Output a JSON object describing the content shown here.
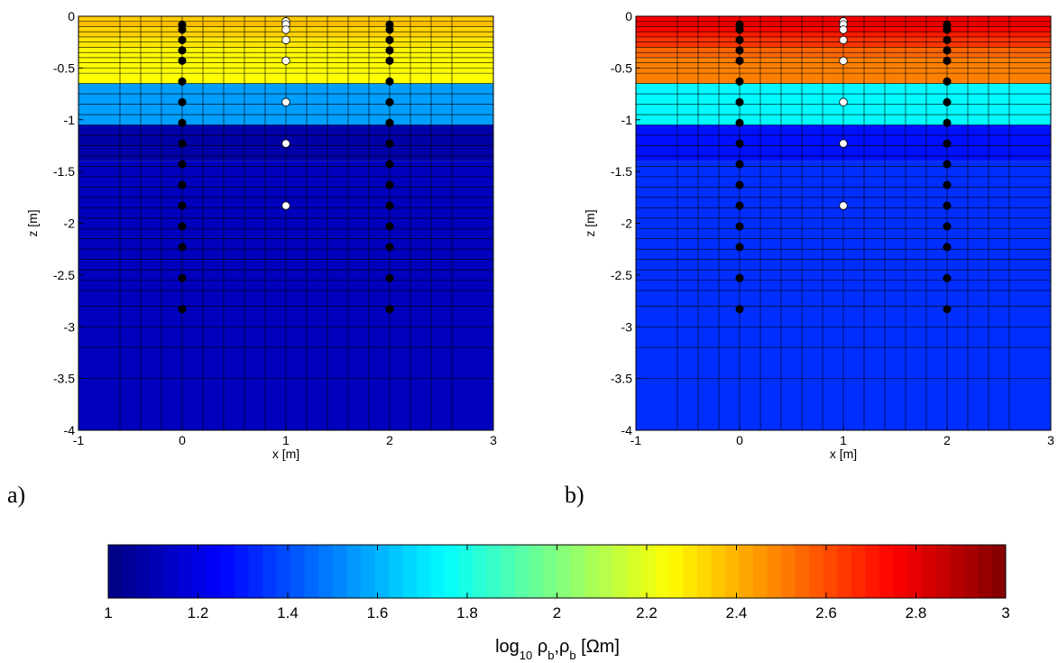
{
  "chart_data": [
    {
      "type": "heatmap",
      "panel_label": "a)",
      "xlabel": "x [m]",
      "ylabel": "z [m]",
      "xlim": [
        -1,
        3
      ],
      "ylim": [
        -4,
        0
      ],
      "xticks": [
        "-1",
        "0",
        "1",
        "2",
        "3"
      ],
      "yticks": [
        "0",
        "-0.5",
        "-1",
        "-1.5",
        "-2",
        "-2.5",
        "-3",
        "-3.5",
        "-4"
      ],
      "grid_x": [
        -1,
        -0.6,
        -0.4,
        -0.2,
        0,
        0.2,
        0.4,
        0.6,
        0.8,
        1,
        1.2,
        1.4,
        1.6,
        1.8,
        2,
        2.2,
        2.4,
        2.6,
        3
      ],
      "layers": [
        {
          "z_top": 0,
          "z_bottom": -0.05,
          "value": 2.35
        },
        {
          "z_top": -0.05,
          "z_bottom": -0.1,
          "value": 2.38
        },
        {
          "z_top": -0.1,
          "z_bottom": -0.15,
          "value": 2.33
        },
        {
          "z_top": -0.15,
          "z_bottom": -0.2,
          "value": 2.34
        },
        {
          "z_top": -0.2,
          "z_bottom": -0.3,
          "value": 2.3
        },
        {
          "z_top": -0.3,
          "z_bottom": -0.4,
          "value": 2.26
        },
        {
          "z_top": -0.4,
          "z_bottom": -0.65,
          "value": 2.25
        },
        {
          "z_top": -0.65,
          "z_bottom": -1.05,
          "value": 1.56
        },
        {
          "z_top": -1.05,
          "z_bottom": -1.4,
          "value": 1.08
        },
        {
          "z_top": -1.4,
          "z_bottom": -4,
          "value": 1.12
        }
      ],
      "layer_lines_z": [
        -0.05,
        -0.1,
        -0.15,
        -0.2,
        -0.25,
        -0.3,
        -0.35,
        -0.4,
        -0.45,
        -0.5,
        -0.55,
        -0.65,
        -0.75,
        -0.85,
        -0.95,
        -1.05,
        -1.15,
        -1.25,
        -1.35,
        -1.45,
        -1.55,
        -1.65,
        -1.75,
        -1.85,
        -1.95,
        -2.05,
        -2.15,
        -2.25,
        -2.35,
        -2.45,
        -2.55,
        -2.65,
        -2.8,
        -3,
        -3.2,
        -3.5
      ],
      "black_points": [
        {
          "x": 0,
          "z": [
            -0.08,
            -0.13,
            -0.23,
            -0.33,
            -0.43,
            -0.63,
            -0.83,
            -1.03,
            -1.23,
            -1.43,
            -1.63,
            -1.83,
            -2.03,
            -2.23,
            -2.53,
            -2.83
          ]
        },
        {
          "x": 2,
          "z": [
            -0.08,
            -0.13,
            -0.23,
            -0.33,
            -0.43,
            -0.63,
            -0.83,
            -1.03,
            -1.23,
            -1.43,
            -1.63,
            -1.83,
            -2.03,
            -2.23,
            -2.53,
            -2.83
          ]
        }
      ],
      "white_points": {
        "x": 1,
        "z": [
          -0.05,
          -0.08,
          -0.13,
          -0.23,
          -0.43,
          -0.83,
          -1.23,
          -1.83
        ]
      }
    },
    {
      "type": "heatmap",
      "panel_label": "b)",
      "xlabel": "x [m]",
      "ylabel": "z [m]",
      "xlim": [
        -1,
        3
      ],
      "ylim": [
        -4,
        0
      ],
      "xticks": [
        "-1",
        "0",
        "1",
        "2",
        "3"
      ],
      "yticks": [
        "0",
        "-0.5",
        "-1",
        "-1.5",
        "-2",
        "-2.5",
        "-3",
        "-3.5",
        "-4"
      ],
      "grid_x": [
        -1,
        -0.6,
        -0.4,
        -0.2,
        0,
        0.2,
        0.4,
        0.6,
        0.8,
        1,
        1.2,
        1.4,
        1.6,
        1.8,
        2,
        2.2,
        2.4,
        2.6,
        3
      ],
      "layers": [
        {
          "z_top": 0,
          "z_bottom": -0.05,
          "value": 2.75
        },
        {
          "z_top": -0.05,
          "z_bottom": -0.1,
          "value": 2.8
        },
        {
          "z_top": -0.1,
          "z_bottom": -0.15,
          "value": 2.75
        },
        {
          "z_top": -0.15,
          "z_bottom": -0.2,
          "value": 2.7
        },
        {
          "z_top": -0.2,
          "z_bottom": -0.3,
          "value": 2.65
        },
        {
          "z_top": -0.3,
          "z_bottom": -0.4,
          "value": 2.55
        },
        {
          "z_top": -0.4,
          "z_bottom": -0.65,
          "value": 2.5
        },
        {
          "z_top": -0.65,
          "z_bottom": -1.05,
          "value": 1.74
        },
        {
          "z_top": -1.05,
          "z_bottom": -1.4,
          "value": 1.28
        },
        {
          "z_top": -1.4,
          "z_bottom": -4,
          "value": 1.34
        }
      ],
      "layer_lines_z": [
        -0.05,
        -0.1,
        -0.15,
        -0.2,
        -0.25,
        -0.3,
        -0.35,
        -0.4,
        -0.45,
        -0.5,
        -0.55,
        -0.65,
        -0.75,
        -0.85,
        -0.95,
        -1.05,
        -1.15,
        -1.25,
        -1.35,
        -1.45,
        -1.55,
        -1.65,
        -1.75,
        -1.85,
        -1.95,
        -2.05,
        -2.15,
        -2.25,
        -2.35,
        -2.45,
        -2.55,
        -2.65,
        -2.8,
        -3,
        -3.2,
        -3.5
      ],
      "black_points": [
        {
          "x": 0,
          "z": [
            -0.08,
            -0.13,
            -0.23,
            -0.33,
            -0.43,
            -0.63,
            -0.83,
            -1.03,
            -1.23,
            -1.43,
            -1.63,
            -1.83,
            -2.03,
            -2.23,
            -2.53,
            -2.83
          ]
        },
        {
          "x": 2,
          "z": [
            -0.08,
            -0.13,
            -0.23,
            -0.33,
            -0.43,
            -0.63,
            -0.83,
            -1.03,
            -1.23,
            -1.43,
            -1.63,
            -1.83,
            -2.03,
            -2.23,
            -2.53,
            -2.83
          ]
        }
      ],
      "white_points": {
        "x": 1,
        "z": [
          -0.05,
          -0.08,
          -0.13,
          -0.23,
          -0.43,
          -0.83,
          -1.23,
          -1.83
        ]
      }
    }
  ],
  "colorbar": {
    "label": "log10 ρb,ρb [Ωm]",
    "range": [
      1,
      3
    ],
    "colormap": "jet",
    "ticks": [
      "1",
      "1.2",
      "1.4",
      "1.6",
      "1.8",
      "2",
      "2.2",
      "2.4",
      "2.6",
      "2.8",
      "3"
    ]
  }
}
